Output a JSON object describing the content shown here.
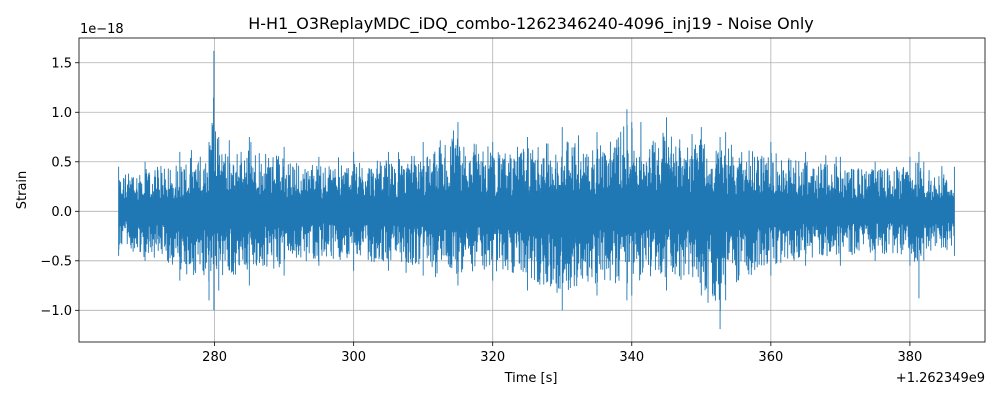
{
  "chart_data": {
    "type": "line",
    "title": "H-H1_O3ReplayMDC_iDQ_combo-1262346240-4096_inj19 - Noise Only",
    "xlabel": "Time [s]",
    "ylabel": "Strain",
    "x_offset_label": "+1.262349e9",
    "y_scale_label": "1e−18",
    "xlim": [
      260.5,
      390.8
    ],
    "ylim": [
      -1.32,
      1.75
    ],
    "x_ticks": [
      280,
      300,
      320,
      340,
      360,
      380
    ],
    "x_tick_labels": [
      "280",
      "300",
      "320",
      "340",
      "360",
      "380"
    ],
    "y_ticks": [
      -1.0,
      -0.5,
      0.0,
      0.5,
      1.0,
      1.5
    ],
    "y_tick_labels": [
      "−1.0",
      "−0.5",
      "0.0",
      "0.5",
      "1.0",
      "1.5"
    ],
    "grid": true,
    "line_color": "#1f77b4",
    "series": [
      {
        "x_start": 266.2,
        "x_end": 386.4,
        "envelope": {
          "x": [
            266.2,
            270,
            275,
            279.2,
            279.9,
            280.6,
            285,
            290,
            295,
            300,
            305,
            310,
            315,
            320,
            325,
            330,
            335,
            339.3,
            340,
            345,
            350,
            352.7,
            353.5,
            360,
            365,
            370,
            375,
            380,
            381.3,
            382,
            386.4
          ],
          "upper": [
            0.45,
            0.5,
            0.6,
            0.7,
            1.62,
            0.75,
            0.75,
            0.65,
            0.55,
            0.6,
            0.6,
            0.7,
            0.9,
            0.7,
            0.75,
            0.85,
            0.8,
            1.03,
            0.9,
            0.95,
            0.85,
            0.75,
            0.8,
            0.7,
            0.6,
            0.55,
            0.5,
            0.55,
            0.6,
            0.5,
            0.45
          ],
          "lower": [
            -0.45,
            -0.5,
            -0.7,
            -0.9,
            -1.0,
            -0.8,
            -0.75,
            -0.65,
            -0.55,
            -0.6,
            -0.6,
            -0.65,
            -0.75,
            -0.7,
            -0.8,
            -1.0,
            -0.85,
            -0.9,
            -0.85,
            -0.8,
            -0.85,
            -1.19,
            -0.9,
            -0.65,
            -0.55,
            -0.55,
            -0.5,
            -0.55,
            -0.88,
            -0.5,
            -0.45
          ]
        }
      }
    ]
  }
}
